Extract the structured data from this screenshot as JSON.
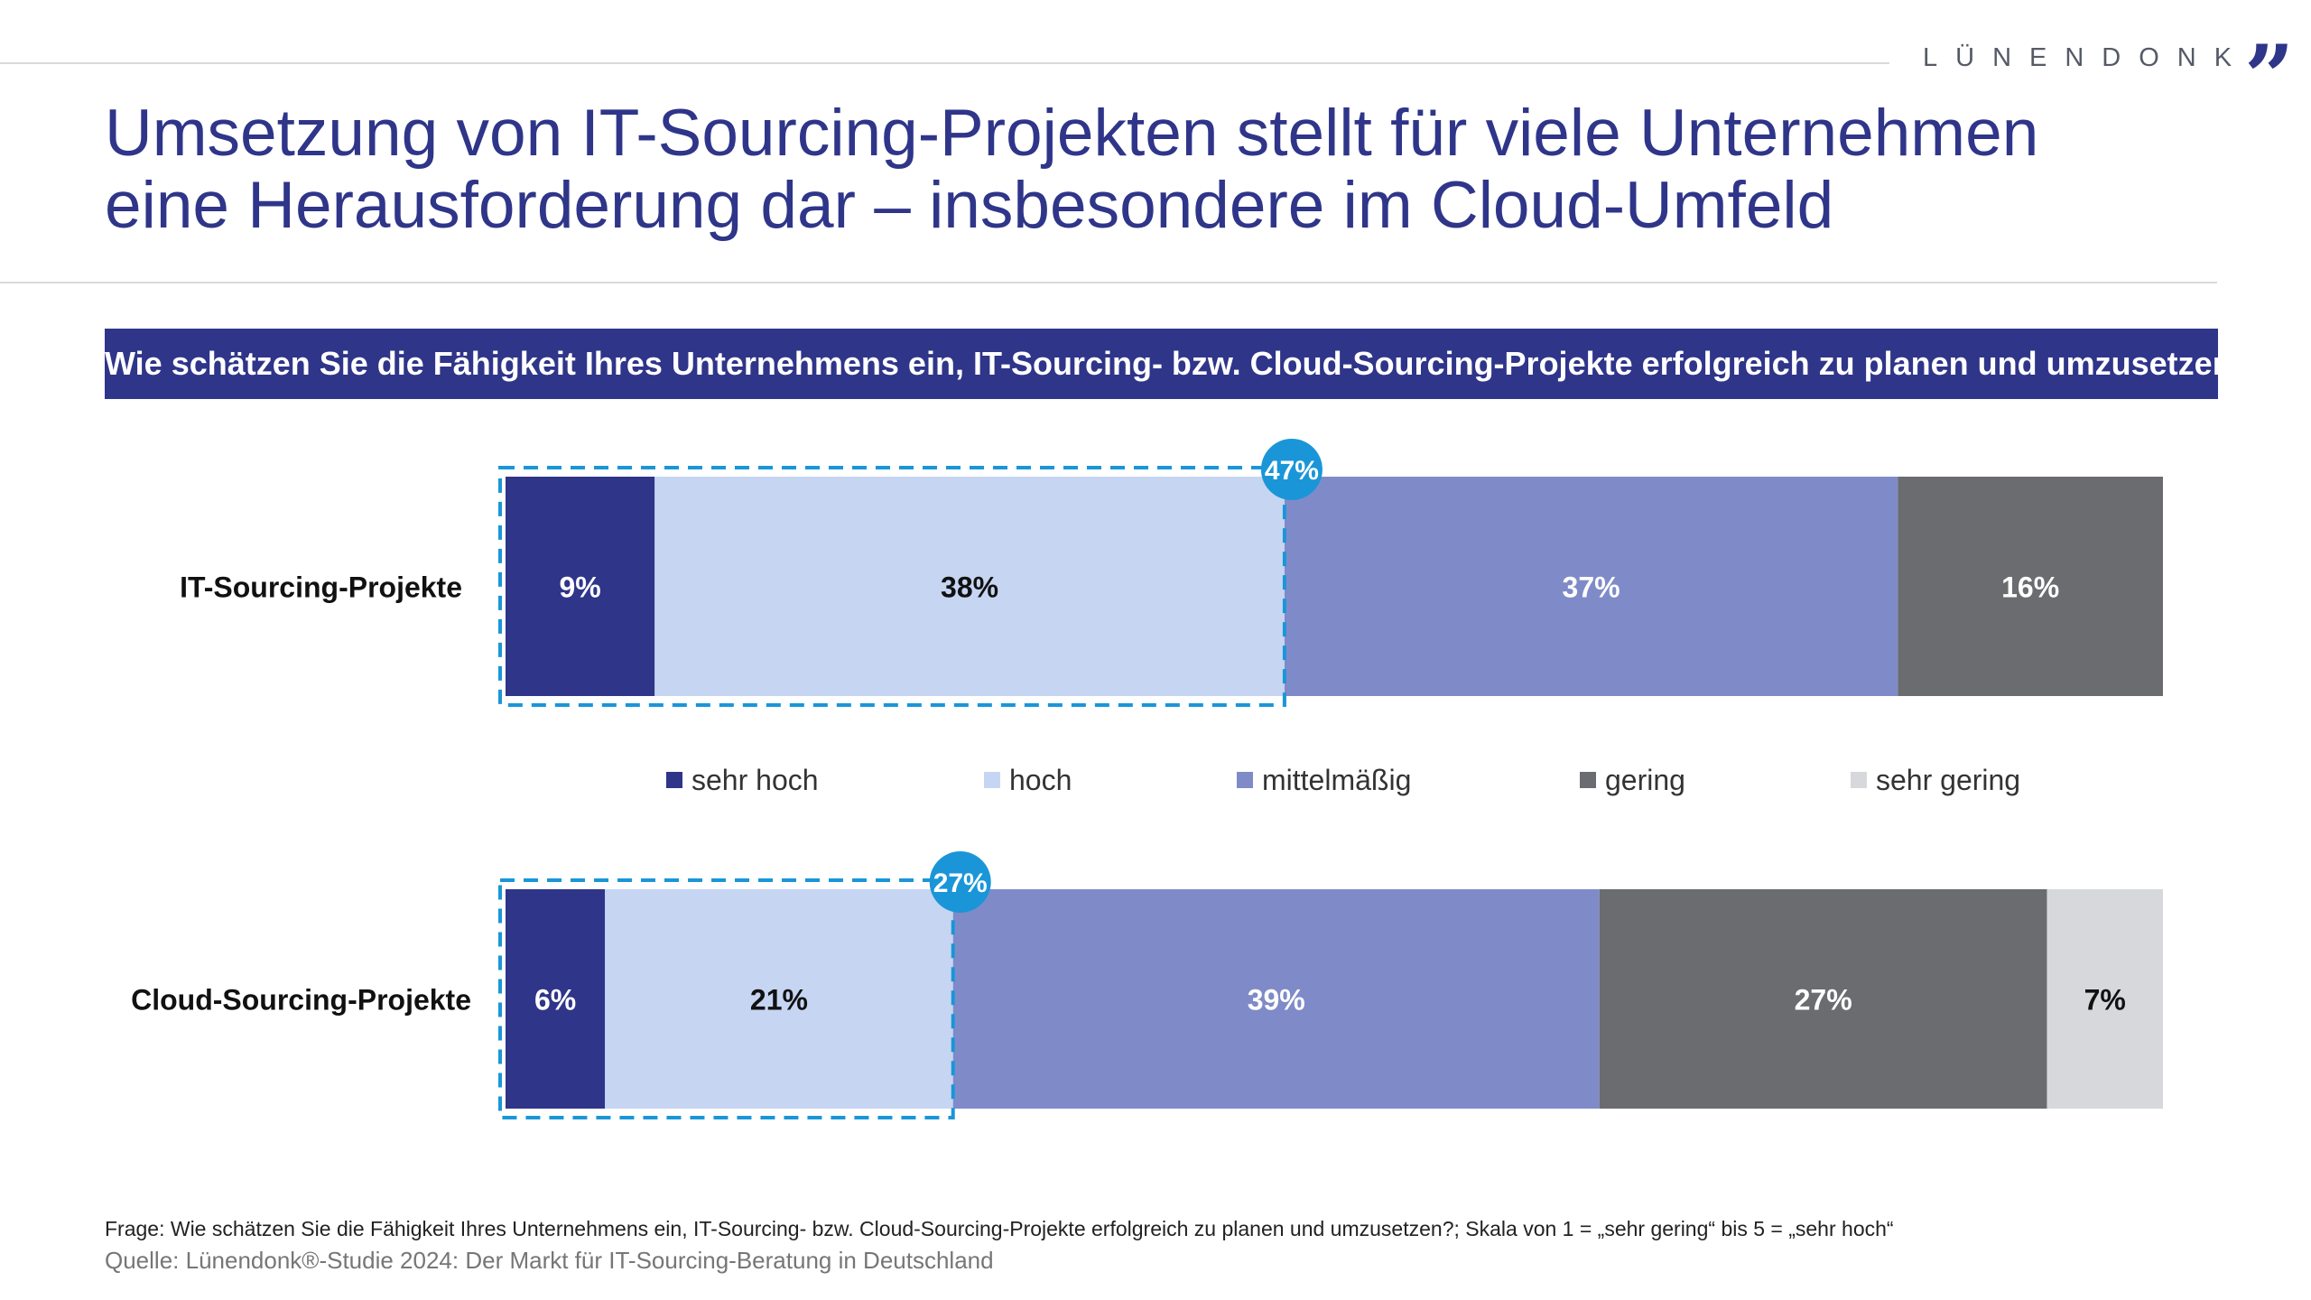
{
  "brand": {
    "name": "LÜNENDONK",
    "mark": "”"
  },
  "title": {
    "line1": "Umsetzung von IT-Sourcing-Projekten stellt für viele Unternehmen",
    "line2": "eine Herausforderung dar – insbesondere im Cloud-Umfeld"
  },
  "question": "Wie schätzen Sie die Fähigkeit Ihres Unternehmens ein, IT-Sourcing- bzw. Cloud-Sourcing-Projekte erfolgreich zu planen und umzusetzen?",
  "footer": {
    "question": "Frage: Wie schätzen Sie die Fähigkeit Ihres Unternehmens ein, IT-Sourcing- bzw. Cloud-Sourcing-Projekte erfolgreich zu planen und umzusetzen?; Skala von 1 = „sehr gering“ bis 5 = „sehr hoch“",
    "source": "Quelle: Lünendonk®-Studie 2024: Der Markt für IT-Sourcing-Beratung in Deutschland"
  },
  "chart_data": {
    "type": "bar",
    "orientation": "horizontal",
    "stacked": true,
    "unit": "%",
    "categories": [
      "IT-Sourcing-Projekte",
      "Cloud-Sourcing-Projekte"
    ],
    "series": [
      {
        "name": "sehr hoch",
        "color": "#2f3589",
        "label_color": "#ffffff",
        "values": [
          9,
          6
        ]
      },
      {
        "name": "hoch",
        "color": "#c6d5f2",
        "label_color": "#111111",
        "values": [
          38,
          21
        ]
      },
      {
        "name": "mittelmäßig",
        "color": "#7f8bc8",
        "label_color": "#ffffff",
        "values": [
          37,
          39
        ]
      },
      {
        "name": "gering",
        "color": "#6a6c70",
        "label_color": "#ffffff",
        "values": [
          16,
          27
        ]
      },
      {
        "name": "sehr gering",
        "color": "#d6d8dc",
        "label_color": "#111111",
        "values": [
          0,
          7
        ]
      }
    ],
    "highlight": {
      "series": [
        "sehr hoch",
        "hoch"
      ],
      "totals": [
        47,
        27
      ],
      "labels": [
        "47%",
        "27%"
      ],
      "color": "#1a96d8"
    },
    "legend": [
      "sehr hoch",
      "hoch",
      "mittelmäßig",
      "gering",
      "sehr gering"
    ],
    "legend_position": "between-bars"
  }
}
